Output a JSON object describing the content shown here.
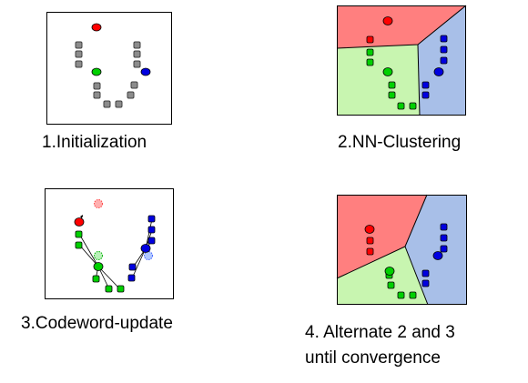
{
  "captions": {
    "step1": "1.Initialization",
    "step2": "2.NN-Clustering",
    "step3": "3.Codeword-update",
    "step4": "4. Alternate 2 and 3\nuntil convergence"
  },
  "colors": {
    "gray_point": "#8c8c8c",
    "red": "#ff0000",
    "green": "#00d000",
    "blue": "#0000e0",
    "region_red": "#ff7f7f",
    "region_green": "#c8f5b0",
    "region_blue": "#a8bfe8",
    "border": "#000000"
  },
  "icons": {
    "data_point": "square-marker",
    "codeword": "circle-marker",
    "previous_codeword": "dashed-circle-marker",
    "movement": "arrow"
  }
}
